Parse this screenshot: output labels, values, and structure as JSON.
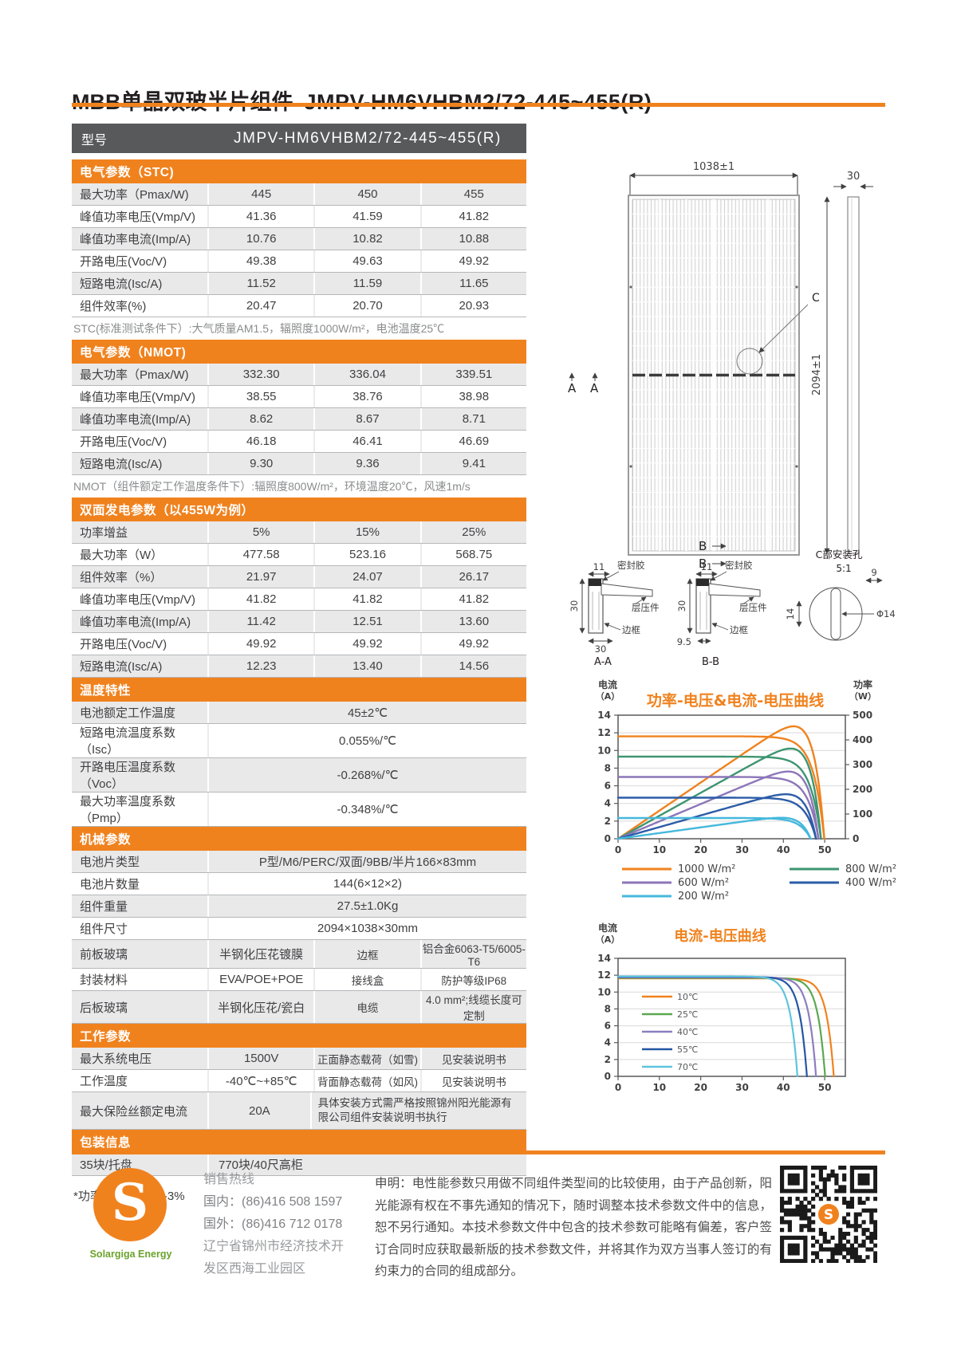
{
  "page": {
    "title": "MBB单晶双玻半片组件",
    "model": "JMPV-HM6VHBM2/72-445~455(R)",
    "footnote": "*功率测量误差  +/-3%"
  },
  "colors": {
    "accent": "#F0821E",
    "header_dark": "#58595B",
    "row_alt": "#E9E9EA",
    "logo_green": "#6BA32C"
  },
  "spec_table": {
    "model_row": {
      "label": "型号",
      "value": "JMPV-HM6VHBM2/72-445~455(R)"
    },
    "sections": [
      {
        "title": "电气参数（STC)",
        "type": "cols3",
        "rows": [
          [
            "最大功率（Pmax/W)",
            "445",
            "450",
            "455"
          ],
          [
            "峰值功率电压(Vmp/V)",
            "41.36",
            "41.59",
            "41.82"
          ],
          [
            "峰值功率电流(Imp/A)",
            "10.76",
            "10.82",
            "10.88"
          ],
          [
            "开路电压(Voc/V)",
            "49.38",
            "49.63",
            "49.92"
          ],
          [
            "短路电流(Isc/A)",
            "11.52",
            "11.59",
            "11.65"
          ],
          [
            "组件效率(%)",
            "20.47",
            "20.70",
            "20.93"
          ]
        ],
        "note": "STC(标准测试条件下）:大气质量AM1.5，辐照度1000W/m²，电池温度25℃"
      },
      {
        "title": "电气参数（NMOT)",
        "type": "cols3",
        "rows": [
          [
            "最大功率（Pmax/W)",
            "332.30",
            "336.04",
            "339.51"
          ],
          [
            "峰值功率电压(Vmp/V)",
            "38.55",
            "38.76",
            "38.98"
          ],
          [
            "峰值功率电流(Imp/A)",
            "8.62",
            "8.67",
            "8.71"
          ],
          [
            "开路电压(Voc/V)",
            "46.18",
            "46.41",
            "46.69"
          ],
          [
            "短路电流(Isc/A)",
            "9.30",
            "9.36",
            "9.41"
          ]
        ],
        "note": "NMOT（组件额定工作温度条件下）:辐照度800W/m²，环境温度20℃，风速1m/s"
      },
      {
        "title": "双面发电参数（以455W为例）",
        "type": "cols3",
        "rows": [
          [
            "功率增益",
            "5%",
            "15%",
            "25%"
          ],
          [
            "最大功率（W）",
            "477.58",
            "523.16",
            "568.75"
          ],
          [
            "组件效率（%）",
            "21.97",
            "24.07",
            "26.17"
          ],
          [
            "峰值功率电压(Vmp/V)",
            "41.82",
            "41.82",
            "41.82"
          ],
          [
            "峰值功率电流(Imp/A)",
            "11.42",
            "12.51",
            "13.60"
          ],
          [
            "开路电压(Voc/V)",
            "49.92",
            "49.92",
            "49.92"
          ],
          [
            "短路电流(Isc/A)",
            "12.23",
            "13.40",
            "14.56"
          ]
        ]
      },
      {
        "title": "温度特性",
        "type": "merged",
        "rows": [
          [
            "电池额定工作温度",
            "45±2℃"
          ],
          [
            "短路电流温度系数（Isc）",
            "0.055%/℃"
          ],
          [
            "开路电压温度系数（Voc）",
            "-0.268%/℃"
          ],
          [
            "最大功率温度系数（Pmp）",
            "-0.348%/℃"
          ]
        ]
      },
      {
        "title": "机械参数",
        "type": "mixed",
        "rows": [
          {
            "cells": [
              "电池片类型",
              "P型/M6/PERC/双面/9BB/半片166×83mm"
            ],
            "span": true
          },
          {
            "cells": [
              "电池片数量",
              "144(6×12×2)"
            ],
            "span": true
          },
          {
            "cells": [
              "组件重量",
              "27.5±1.0Kg"
            ],
            "span": true
          },
          {
            "cells": [
              "组件尺寸",
              "2094×1038×30mm"
            ],
            "span": true
          },
          {
            "cells": [
              "前板玻璃",
              "半钢化压花镀膜",
              "边框",
              "铝合金6063-T5/6005-T6"
            ]
          },
          {
            "cells": [
              "封装材料",
              "EVA/POE+POE",
              "接线盒",
              "防护等级IP68"
            ]
          },
          {
            "cells": [
              "后板玻璃",
              "半钢化压花/瓷白",
              "电缆",
              "4.0 mm²;线缆长度可定制"
            ]
          }
        ]
      },
      {
        "title": "工作参数",
        "type": "mixed",
        "rows": [
          {
            "cells": [
              "最大系统电压",
              "1500V",
              "正面静态载荷（如雪)",
              "见安装说明书"
            ]
          },
          {
            "cells": [
              "工作温度",
              "-40℃~+85℃",
              "背面静态载荷（如风)",
              "见安装说明书"
            ]
          },
          {
            "cells": [
              "最大保险丝额定电流",
              "20A",
              "具体安装方式需严格按照锦州阳光能源有限公司组件安装说明书执行"
            ],
            "wide_last": true,
            "tall": true
          }
        ]
      },
      {
        "title": "包装信息",
        "type": "mixed",
        "rows": [
          {
            "cells": [
              "35块/托盘",
              "770块/40尺高柜"
            ],
            "span": true,
            "left": true
          }
        ]
      }
    ]
  },
  "diagram": {
    "dim_width": "1038±1",
    "dim_height": "2094±1",
    "dim_thickness": "30",
    "mark_a": "A",
    "mark_b": "B",
    "mark_c": "C",
    "sec_a": {
      "dim_top": "11",
      "dim_left": "30",
      "dim_bottom": "30",
      "label": "A-A",
      "seal": "密封胶",
      "laminate": "层压件",
      "frame": "边框"
    },
    "sec_b": {
      "dim_top": "11",
      "dim_left": "30",
      "dim_bottom": "9.5",
      "label": "B-B",
      "seal": "密封胶",
      "laminate": "层压件",
      "frame": "边框"
    },
    "hole_c": {
      "title": "C部安装孔",
      "scale": "5:1",
      "dim_w": "9",
      "dim_h": "14",
      "dim_d": "Φ14"
    }
  },
  "chart_data": [
    {
      "type": "line",
      "title": "功率-电压&电流-电压曲线",
      "left_axis_label_1": "电流",
      "left_axis_label_2": "（A）",
      "right_axis_label_1": "功率",
      "right_axis_label_2": "（W）",
      "x_range": [
        0,
        55
      ],
      "x_ticks": [
        0,
        10,
        20,
        30,
        40,
        50
      ],
      "y_left_range": [
        0,
        14
      ],
      "y_left_ticks": [
        0,
        2,
        4,
        6,
        8,
        10,
        12,
        14
      ],
      "y_right_range": [
        0,
        500
      ],
      "y_right_ticks": [
        0,
        100,
        200,
        300,
        400,
        500
      ],
      "grid": true,
      "legend_position": "bottom",
      "curves": "iv+pv",
      "series": [
        {
          "name": "1000 W/m²",
          "color": "#F0821E",
          "isc": 11.6,
          "voc": 49.9,
          "pmax": 455
        },
        {
          "name": "800 W/m²",
          "color": "#3E9571",
          "isc": 9.3,
          "voc": 49.1,
          "pmax": 365
        },
        {
          "name": "600 W/m²",
          "color": "#8C76B8",
          "isc": 7.0,
          "voc": 48.5,
          "pmax": 272
        },
        {
          "name": "400 W/m²",
          "color": "#2B5CA7",
          "isc": 4.65,
          "voc": 47.9,
          "pmax": 180
        },
        {
          "name": "200 W/m²",
          "color": "#45B8DC",
          "isc": 2.35,
          "voc": 46.6,
          "pmax": 85
        }
      ]
    },
    {
      "type": "line",
      "title": "电流-电压曲线",
      "left_axis_label_1": "电流",
      "left_axis_label_2": "（A）",
      "x_range": [
        0,
        55
      ],
      "x_ticks": [
        0,
        10,
        20,
        30,
        40,
        50
      ],
      "y_left_range": [
        0,
        14
      ],
      "y_left_ticks": [
        0,
        2,
        4,
        6,
        8,
        10,
        12,
        14
      ],
      "grid": true,
      "legend_position": "inside-left",
      "curves": "iv",
      "series": [
        {
          "name": "10℃",
          "color": "#F0821E",
          "isc": 11.62,
          "voc": 52.2
        },
        {
          "name": "25℃",
          "color": "#5BA850",
          "isc": 11.68,
          "voc": 50.1
        },
        {
          "name": "40℃",
          "color": "#8C7EC0",
          "isc": 11.74,
          "voc": 47.9
        },
        {
          "name": "55℃",
          "color": "#2456A4",
          "isc": 11.8,
          "voc": 45.7
        },
        {
          "name": "70℃",
          "color": "#5FC4DE",
          "isc": 11.86,
          "voc": 43.4
        }
      ]
    }
  ],
  "footer": {
    "logo_letter": "S",
    "logo_brand": "Solargiga Energy",
    "hotline_title": "销售热线",
    "domestic": "国内：(86)416 508 1597",
    "overseas": "国外：(86)416 712 0178",
    "address_line1": "辽宁省锦州市经济技术开",
    "address_line2": "发区西海工业园区",
    "disclaimer": "申明：电性能参数只用做不同组件类型间的比较使用，由于产品创新，阳光能源有权在不事先通知的情况下，随时调整本技术参数文件中的信息，恕不另行通知。本技术参数文件中包含的技术参数可能略有偏差，客户签订合同时应获取最新版的技术参数文件，并将其作为双方当事人签订的有约束力的合同的组成部分。"
  }
}
